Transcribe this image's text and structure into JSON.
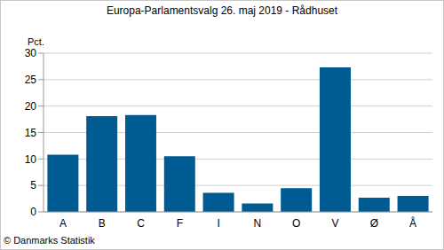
{
  "chart_data": {
    "type": "bar",
    "title": "Europa-Parlamentsvalg 26. maj 2019 - Rådhuset",
    "y_label": "Pct.",
    "annotations": [
      "© Danmarks Statistik"
    ],
    "categories": [
      "A",
      "B",
      "C",
      "F",
      "I",
      "N",
      "O",
      "V",
      "Ø",
      "Å"
    ],
    "values": [
      10.8,
      18.1,
      18.3,
      10.5,
      3.6,
      1.6,
      4.5,
      27.3,
      2.7,
      3.0
    ],
    "color": "#005b92",
    "ylim": [
      0,
      30
    ],
    "yticks": [
      0,
      5,
      10,
      15,
      20,
      25,
      30
    ],
    "grid": true
  }
}
